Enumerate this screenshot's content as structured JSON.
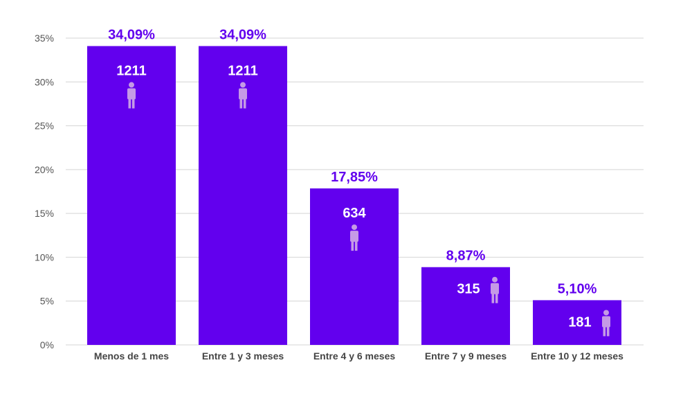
{
  "chart_data": {
    "type": "bar",
    "title": "",
    "xlabel": "",
    "ylabel": "",
    "categories": [
      "Menos de 1 mes",
      "Entre 1 y 3 meses",
      "Entre 4 y 6 meses",
      "Entre 7 y 9 meses",
      "Entre 10 y 12 meses"
    ],
    "values": [
      34.09,
      34.09,
      17.85,
      8.87,
      5.1
    ],
    "percent_labels": [
      "34,09%",
      "34,09%",
      "17,85%",
      "8,87%",
      "5,10%"
    ],
    "counts": [
      "1211",
      "1211",
      "634",
      "315",
      "181"
    ],
    "ylim": [
      0,
      35
    ],
    "yticks": [
      0,
      5,
      10,
      15,
      20,
      25,
      30,
      35
    ],
    "ytick_labels": [
      "0%",
      "5%",
      "10%",
      "15%",
      "20%",
      "25%",
      "30%",
      "35%"
    ],
    "grid": true,
    "legend": "none",
    "icon": "person-icon",
    "colors": {
      "bar": "#6200ee",
      "label": "#6200ee",
      "icon": "#c59ae6",
      "grid": "#d4d4d4"
    }
  }
}
